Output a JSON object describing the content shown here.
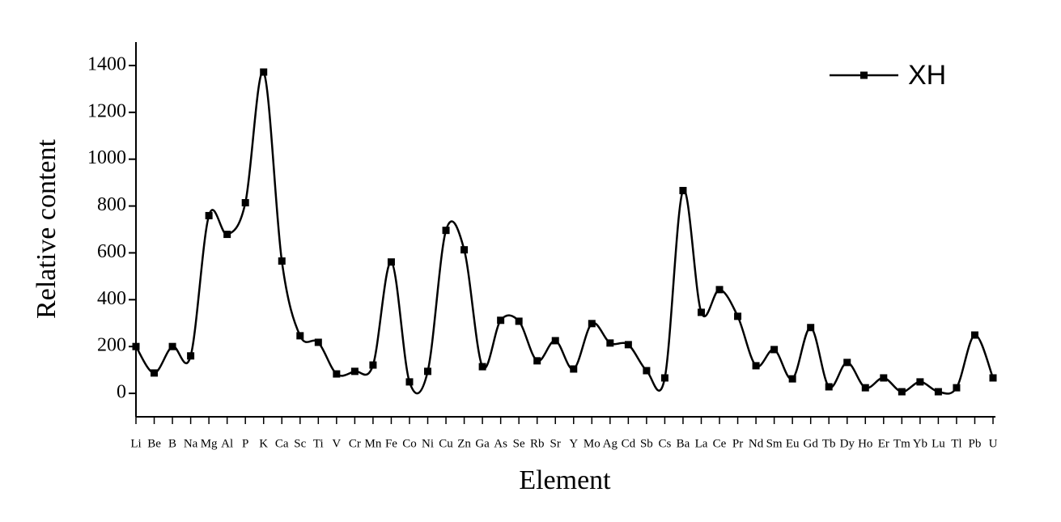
{
  "chart_data": {
    "type": "line",
    "x_label": "Element",
    "y_label": "Relative content",
    "categories": [
      "Li",
      "Be",
      "B",
      "Na",
      "Mg",
      "Al",
      "P",
      "K",
      "Ca",
      "Sc",
      "Ti",
      "V",
      "Cr",
      "Mn",
      "Fe",
      "Co",
      "Ni",
      "Cu",
      "Zn",
      "Ga",
      "As",
      "Se",
      "Rb",
      "Sr",
      "Y",
      "Mo",
      "Ag",
      "Cd",
      "Sb",
      "Cs",
      "Ba",
      "La",
      "Ce",
      "Pr",
      "Nd",
      "Sm",
      "Eu",
      "Gd",
      "Tb",
      "Dy",
      "Ho",
      "Er",
      "Tm",
      "Yb",
      "Lu",
      "Tl",
      "Pb",
      "U"
    ],
    "series": [
      {
        "name": "XH",
        "color": "#000000",
        "values": [
          200,
          87,
          200,
          160,
          759,
          679,
          814,
          1372,
          565,
          246,
          218,
          83,
          94,
          121,
          561,
          49,
          94,
          696,
          613,
          114,
          312,
          308,
          139,
          225,
          104,
          298,
          215,
          208,
          97,
          66,
          866,
          346,
          443,
          329,
          118,
          187,
          62,
          281,
          28,
          132,
          24,
          66,
          7,
          49,
          7,
          24,
          249,
          66
        ]
      }
    ],
    "ylim": [
      -100,
      1500
    ],
    "yticks": [
      0,
      200,
      400,
      600,
      800,
      1000,
      1200,
      1400
    ],
    "legend": "upper right",
    "smooth": true
  }
}
